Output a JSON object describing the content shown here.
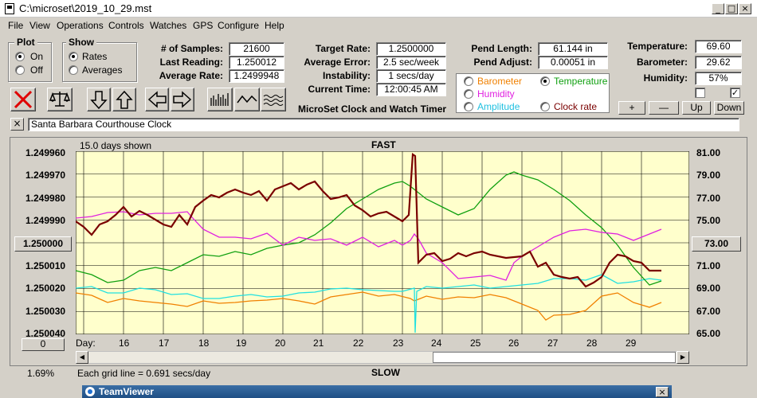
{
  "window": {
    "title": "C:\\microset\\2019_10_29.mst"
  },
  "menu": [
    "File",
    "View",
    "Operations",
    "Controls",
    "Watches",
    "GPS",
    "Configure",
    "Help"
  ],
  "plot_group": {
    "title": "Plot",
    "on": "On",
    "off": "Off",
    "selected": "On"
  },
  "show_group": {
    "title": "Show",
    "rates": "Rates",
    "averages": "Averages",
    "selected": "Rates"
  },
  "stats": {
    "samples_label": "# of Samples:",
    "samples": "21600",
    "last_reading_label": "Last Reading:",
    "last_reading": "1.250012",
    "average_rate_label": "Average Rate:",
    "average_rate": "1.2499948",
    "target_rate_label": "Target Rate:",
    "target_rate": "1.2500000",
    "average_error_label": "Average Error:",
    "average_error": "2.5 sec/week",
    "instability_label": "Instability:",
    "instability": "1 secs/day",
    "current_time_label": "Current Time:",
    "current_time": "12:00:45 AM",
    "pend_length_label": "Pend Length:",
    "pend_length": "61.144 in",
    "pend_adjust_label": "Pend Adjust:",
    "pend_adjust": "0.00051 in",
    "temperature_label": "Temperature:",
    "temperature": "69.60",
    "barometer_label": "Barometer:",
    "barometer": "29.62",
    "humidity_label": "Humidity:",
    "humidity": "57%"
  },
  "app_title": "MicroSet Clock and Watch Timer",
  "sensor_options": {
    "barometer": "Barometer",
    "temperature": "Temperature",
    "humidity": "Humidity",
    "amplitude": "Amplitude",
    "clock_rate": "Clock rate",
    "selected": "Temperature"
  },
  "adjust_buttons": {
    "plus": "+",
    "minus": "—",
    "up": "Up",
    "down": "Down"
  },
  "clock_name": "Santa Barbara Courthouse Clock",
  "close_label": "×",
  "plot": {
    "days_shown": "15.0 days shown",
    "top_label": "FAST",
    "bottom_label": "SLOW",
    "left_ticks": [
      "1.249960",
      "1.249970",
      "1.249980",
      "1.249990",
      "1.250000",
      "1.250010",
      "1.250020",
      "1.250030",
      "1.250040"
    ],
    "center_value": "1.250000",
    "right_ticks": [
      "81.00",
      "79.00",
      "77.00",
      "75.00",
      "73.00",
      "71.00",
      "69.00",
      "67.00",
      "65.00"
    ],
    "right_center_value": "73.00",
    "day_prefix": "Day:",
    "days": [
      "16",
      "17",
      "18",
      "19",
      "20",
      "21",
      "22",
      "23",
      "24",
      "25",
      "26",
      "27",
      "28",
      "29"
    ],
    "offset_button": "0",
    "percent": "1.69%",
    "grid_info": "Each grid line = 0.691 secs/day"
  },
  "colors": {
    "plot_bg": "#ffffcc",
    "rate": "#7a0000",
    "temperature": "#10a010",
    "humidity": "#e020e0",
    "amplitude": "#20e0e0",
    "barometer": "#f08000"
  },
  "taskbar": {
    "teamviewer": "TeamViewer"
  }
}
